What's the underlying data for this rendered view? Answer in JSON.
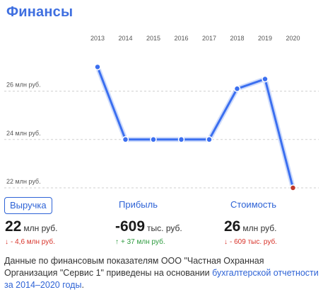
{
  "header": {
    "title": "Финансы"
  },
  "chart_data": {
    "type": "line",
    "x": [
      "2013",
      "2014",
      "2015",
      "2016",
      "2017",
      "2018",
      "2019",
      "2020"
    ],
    "series": [
      {
        "values": [
          27.0,
          24.0,
          24.0,
          24.0,
          24.0,
          26.1,
          26.5,
          22.0
        ]
      }
    ],
    "y_ticks": [
      26,
      24,
      22
    ],
    "y_tick_labels": [
      "26 млн руб.",
      "24 млн руб.",
      "22 млн руб."
    ],
    "ylim": [
      22,
      27.6
    ],
    "grid": "horizontal dashed",
    "line_color": "#3b6ff0",
    "last_point_color": "#c0392b"
  },
  "tabs": [
    {
      "label": "Выручка",
      "active": true
    },
    {
      "label": "Прибыль",
      "active": false
    },
    {
      "label": "Стоимость",
      "active": false
    }
  ],
  "metrics": [
    {
      "value": "22",
      "unit": "млн руб.",
      "delta_arrow": "↓",
      "delta": "- 4,6 млн руб.",
      "direction": "down"
    },
    {
      "value": "-609",
      "unit": "тыс. руб.",
      "delta_arrow": "↑",
      "delta": "+ 37 млн руб.",
      "direction": "up"
    },
    {
      "value": "26",
      "unit": "млн руб.",
      "delta_arrow": "↓",
      "delta": "- 609 тыс. руб.",
      "direction": "down"
    }
  ],
  "footnote": {
    "text": "Данные по финансовым показателям ООО \"Частная Охранная Организация \"Сервис 1\" приведены на основании ",
    "link": "бухгалтерской отчетности за 2014–2020 годы",
    "end": "."
  }
}
